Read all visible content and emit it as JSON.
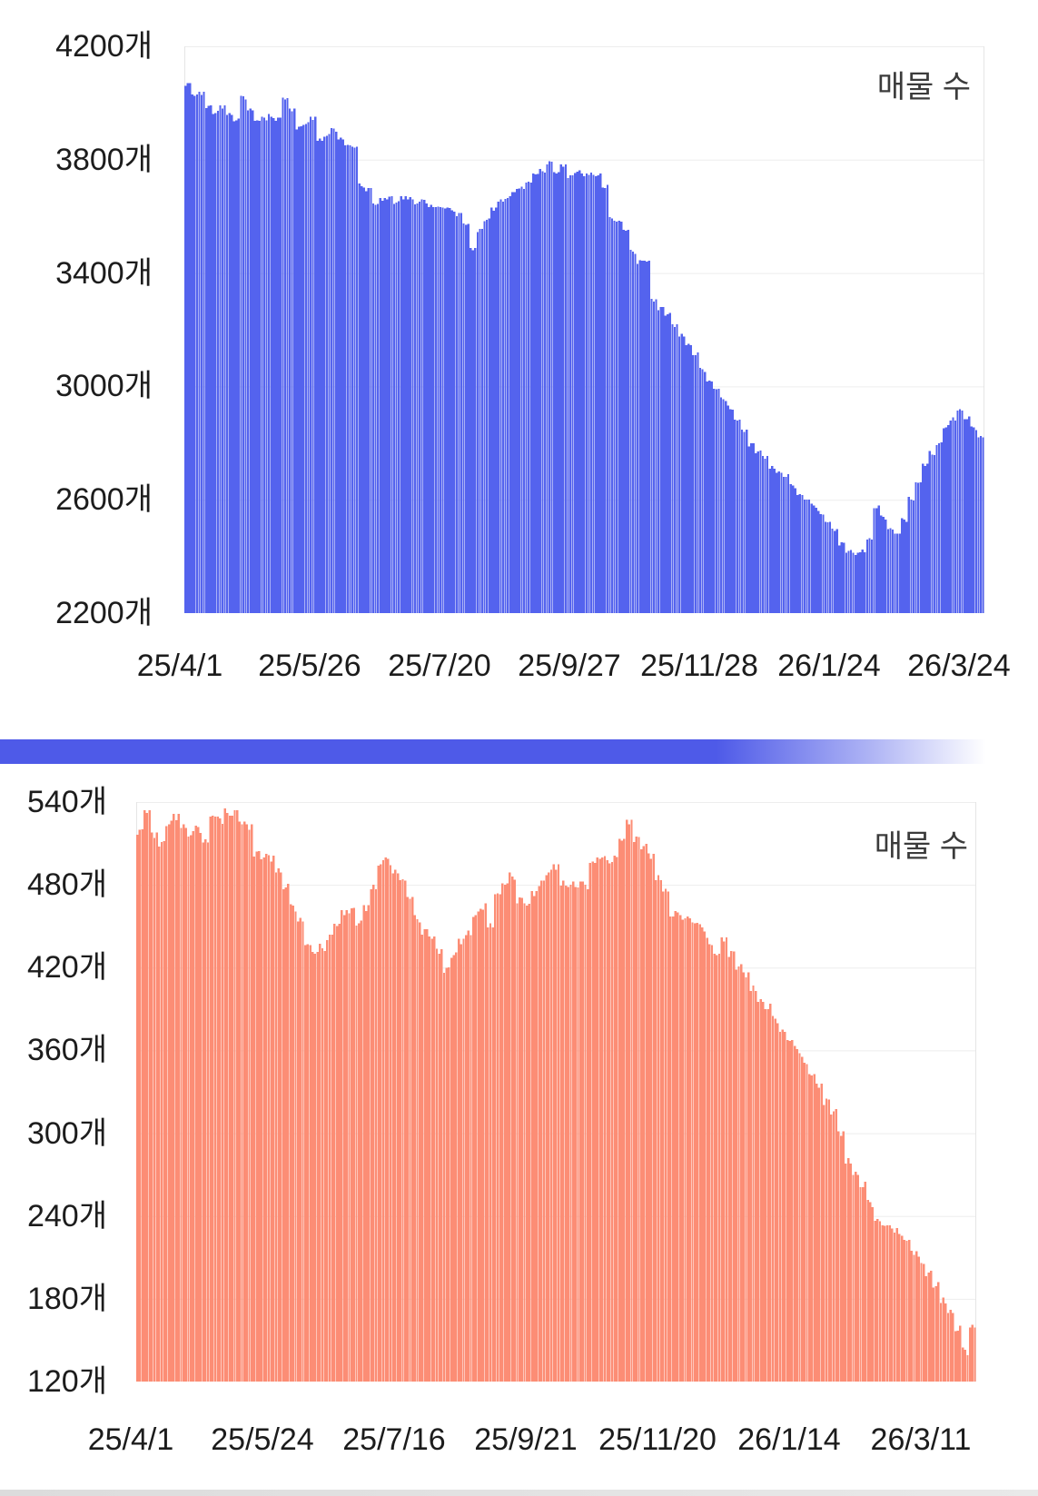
{
  "chart_data": [
    {
      "id": "listings-count-large",
      "type": "area",
      "legend": "매물 수",
      "y_unit": "개",
      "fill_color": "#5463ee",
      "grid": true,
      "legend_position": "top-right",
      "ylim": [
        2200,
        4200
      ],
      "y_tick_step": 400,
      "y_tick_labels": [
        "4200개",
        "3800개",
        "3400개",
        "3000개",
        "2600개",
        "2200개"
      ],
      "x_tick_labels": [
        "25/4/1",
        "25/5/26",
        "25/7/20",
        "25/9/27",
        "25/11/28",
        "26/1/24",
        "26/3/24"
      ],
      "x_range": [
        "25/4/1",
        "26/3/31"
      ],
      "values": [
        4070,
        4025,
        4029,
        3990,
        3965,
        3980,
        3965,
        3938,
        4023,
        3980,
        3938,
        3948,
        3952,
        3948,
        4013,
        3971,
        3916,
        3926,
        3940,
        3875,
        3884,
        3910,
        3878,
        3852,
        3842,
        3707,
        3700,
        3640,
        3655,
        3670,
        3648,
        3660,
        3668,
        3645,
        3658,
        3640,
        3635,
        3628,
        3622,
        3612,
        3570,
        3480,
        3555,
        3588,
        3620,
        3660,
        3665,
        3685,
        3705,
        3722,
        3748,
        3760,
        3795,
        3752,
        3775,
        3745,
        3758,
        3742,
        3755,
        3745,
        3700,
        3592,
        3585,
        3550,
        3475,
        3445,
        3440,
        3300,
        3280,
        3255,
        3210,
        3185,
        3150,
        3110,
        3060,
        3020,
        2990,
        2955,
        2920,
        2880,
        2840,
        2800,
        2770,
        2745,
        2720,
        2700,
        2680,
        2650,
        2620,
        2600,
        2580,
        2550,
        2520,
        2490,
        2450,
        2420,
        2405,
        2425,
        2465,
        2570,
        2540,
        2500,
        2480,
        2530,
        2600,
        2660,
        2720,
        2760,
        2800,
        2855,
        2890,
        2920,
        2885,
        2855,
        2825
      ]
    },
    {
      "id": "listings-count-small",
      "type": "area",
      "legend": "매물 수",
      "y_unit": "개",
      "fill_color": "#fc8d75",
      "grid": true,
      "legend_position": "top-right",
      "ylim": [
        120,
        540
      ],
      "y_tick_step": 60,
      "y_tick_labels": [
        "540개",
        "480개",
        "420개",
        "360개",
        "300개",
        "240개",
        "180개",
        "120개"
      ],
      "x_tick_labels": [
        "25/4/1",
        "25/5/24",
        "25/7/16",
        "25/9/21",
        "25/11/20",
        "26/1/14",
        "26/3/11"
      ],
      "x_range": [
        "25/4/1",
        "26/3/31"
      ],
      "values": [
        520,
        532,
        514,
        511,
        524,
        527,
        524,
        516,
        522,
        513,
        530,
        528,
        532,
        534,
        524,
        520,
        504,
        500,
        497,
        492,
        478,
        465,
        456,
        437,
        430,
        434,
        444,
        450,
        458,
        463,
        452,
        461,
        480,
        495,
        499,
        491,
        484,
        470,
        455,
        448,
        441,
        430,
        420,
        429,
        437,
        447,
        458,
        462,
        452,
        474,
        480,
        486,
        471,
        465,
        472,
        483,
        489,
        491,
        483,
        480,
        478,
        480,
        497,
        499,
        498,
        501,
        512,
        524,
        515,
        508,
        499,
        487,
        477,
        457,
        458,
        457,
        452,
        449,
        437,
        429,
        439,
        432,
        421,
        413,
        407,
        397,
        390,
        383,
        375,
        367,
        361,
        351,
        342,
        333,
        325,
        316,
        298,
        282,
        272,
        261,
        250,
        238,
        233,
        231,
        227,
        222,
        212,
        206,
        199,
        189,
        181,
        172,
        157,
        143,
        161
      ]
    }
  ],
  "divider": {
    "color": "#4e5ae8"
  },
  "footer_strip": {
    "color": "#dcdcdc"
  }
}
